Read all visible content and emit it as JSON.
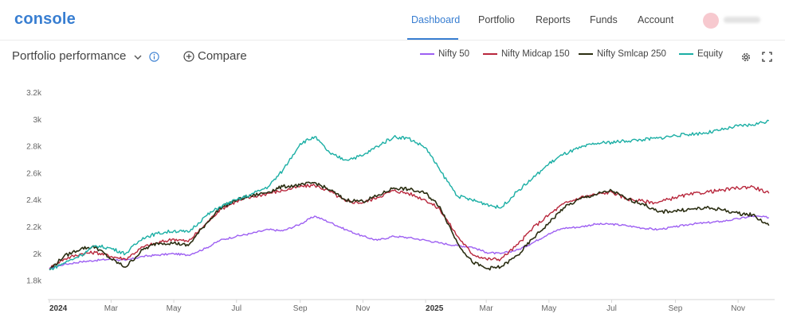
{
  "brand": {
    "logo": "console"
  },
  "nav": [
    {
      "label": "Dashboard",
      "active": true
    },
    {
      "label": "Portfolio",
      "active": false
    },
    {
      "label": "Reports",
      "active": false
    },
    {
      "label": "Funds",
      "active": false
    },
    {
      "label": "Account",
      "active": false
    }
  ],
  "toolbar": {
    "title": "Portfolio performance",
    "compare_label": "Compare",
    "icons": [
      "chevron-down-icon",
      "info-icon",
      "plus-circle-icon",
      "gear-icon",
      "expand-icon"
    ]
  },
  "colors": {
    "accent": "#387ed1",
    "nifty50": "#9d5ff2",
    "midcap": "#b8273c",
    "smlcap": "#2b2e12",
    "equity": "#1aaea4"
  },
  "chart_data": {
    "type": "line",
    "x": [
      "2024-01-01",
      "2024-01-15",
      "2024-02-01",
      "2024-02-15",
      "2024-03-01",
      "2024-03-15",
      "2024-04-01",
      "2024-04-15",
      "2024-05-01",
      "2024-05-15",
      "2024-06-01",
      "2024-06-15",
      "2024-07-01",
      "2024-07-15",
      "2024-08-01",
      "2024-08-15",
      "2024-09-01",
      "2024-09-15",
      "2024-10-01",
      "2024-10-15",
      "2024-11-01",
      "2024-11-15",
      "2024-12-01",
      "2024-12-15",
      "2025-01-01",
      "2025-01-15",
      "2025-02-01",
      "2025-02-15",
      "2025-03-01",
      "2025-03-15",
      "2025-04-01",
      "2025-04-15",
      "2025-05-01",
      "2025-05-15",
      "2025-06-01",
      "2025-06-15",
      "2025-07-01",
      "2025-07-15",
      "2025-08-01",
      "2025-08-15",
      "2025-09-01",
      "2025-09-15",
      "2025-10-01",
      "2025-10-15",
      "2025-11-01",
      "2025-11-15",
      "2025-12-01"
    ],
    "series": [
      {
        "name": "Nifty 50",
        "color": "#9d5ff2",
        "values": [
          1890,
          1920,
          1940,
          1950,
          1960,
          1950,
          1980,
          1990,
          2000,
          1990,
          2040,
          2100,
          2130,
          2150,
          2180,
          2170,
          2220,
          2280,
          2230,
          2180,
          2130,
          2100,
          2130,
          2120,
          2100,
          2080,
          2060,
          2050,
          2010,
          2000,
          2030,
          2080,
          2150,
          2190,
          2200,
          2220,
          2220,
          2210,
          2190,
          2180,
          2200,
          2220,
          2230,
          2240,
          2260,
          2280,
          2270
        ]
      },
      {
        "name": "Nifty Midcap 150",
        "color": "#b8273c",
        "values": [
          1890,
          1960,
          2000,
          2010,
          1980,
          1960,
          2050,
          2080,
          2110,
          2090,
          2220,
          2330,
          2390,
          2420,
          2450,
          2470,
          2500,
          2510,
          2460,
          2390,
          2380,
          2420,
          2470,
          2450,
          2400,
          2330,
          2130,
          2000,
          1960,
          1960,
          2070,
          2190,
          2290,
          2370,
          2420,
          2440,
          2460,
          2410,
          2390,
          2380,
          2420,
          2440,
          2460,
          2470,
          2490,
          2500,
          2450
        ]
      },
      {
        "name": "Nifty Smlcap 250",
        "color": "#2b2e12",
        "values": [
          1880,
          1980,
          2040,
          2050,
          1960,
          1900,
          2030,
          2080,
          2080,
          2060,
          2220,
          2340,
          2400,
          2430,
          2460,
          2500,
          2510,
          2530,
          2470,
          2400,
          2390,
          2430,
          2490,
          2480,
          2450,
          2350,
          2080,
          1940,
          1890,
          1900,
          1990,
          2110,
          2230,
          2340,
          2410,
          2440,
          2470,
          2410,
          2370,
          2310,
          2320,
          2330,
          2340,
          2330,
          2300,
          2290,
          2210
        ]
      },
      {
        "name": "Equity",
        "color": "#1aaea4",
        "values": [
          1880,
          1930,
          1990,
          2060,
          2040,
          2000,
          2120,
          2150,
          2170,
          2160,
          2280,
          2350,
          2400,
          2440,
          2500,
          2620,
          2820,
          2870,
          2740,
          2700,
          2730,
          2800,
          2870,
          2860,
          2790,
          2620,
          2430,
          2400,
          2370,
          2340,
          2470,
          2560,
          2670,
          2740,
          2790,
          2820,
          2830,
          2840,
          2850,
          2860,
          2880,
          2890,
          2900,
          2920,
          2950,
          2960,
          2990
        ]
      }
    ],
    "x_tick_labels": [
      "2024",
      "Mar",
      "May",
      "Jul",
      "Sep",
      "Nov",
      "2025",
      "Mar",
      "May",
      "Jul",
      "Sep",
      "Nov"
    ],
    "x_tick_dates": [
      "2024-01-01",
      "2024-03-01",
      "2024-05-01",
      "2024-07-01",
      "2024-09-01",
      "2024-11-01",
      "2025-01-01",
      "2025-03-01",
      "2025-05-01",
      "2025-07-01",
      "2025-09-01",
      "2025-11-01"
    ],
    "y_tick_labels": [
      "1.8k",
      "2k",
      "2.2k",
      "2.4k",
      "2.6k",
      "2.8k",
      "3k",
      "3.2k"
    ],
    "y_ticks": [
      1800,
      2000,
      2200,
      2400,
      2600,
      2800,
      3000,
      3200
    ],
    "ylim": [
      1700,
      3250
    ],
    "xlim": [
      "2024-01-01",
      "2025-12-05"
    ],
    "grid": false,
    "legend_position": "top-right"
  }
}
